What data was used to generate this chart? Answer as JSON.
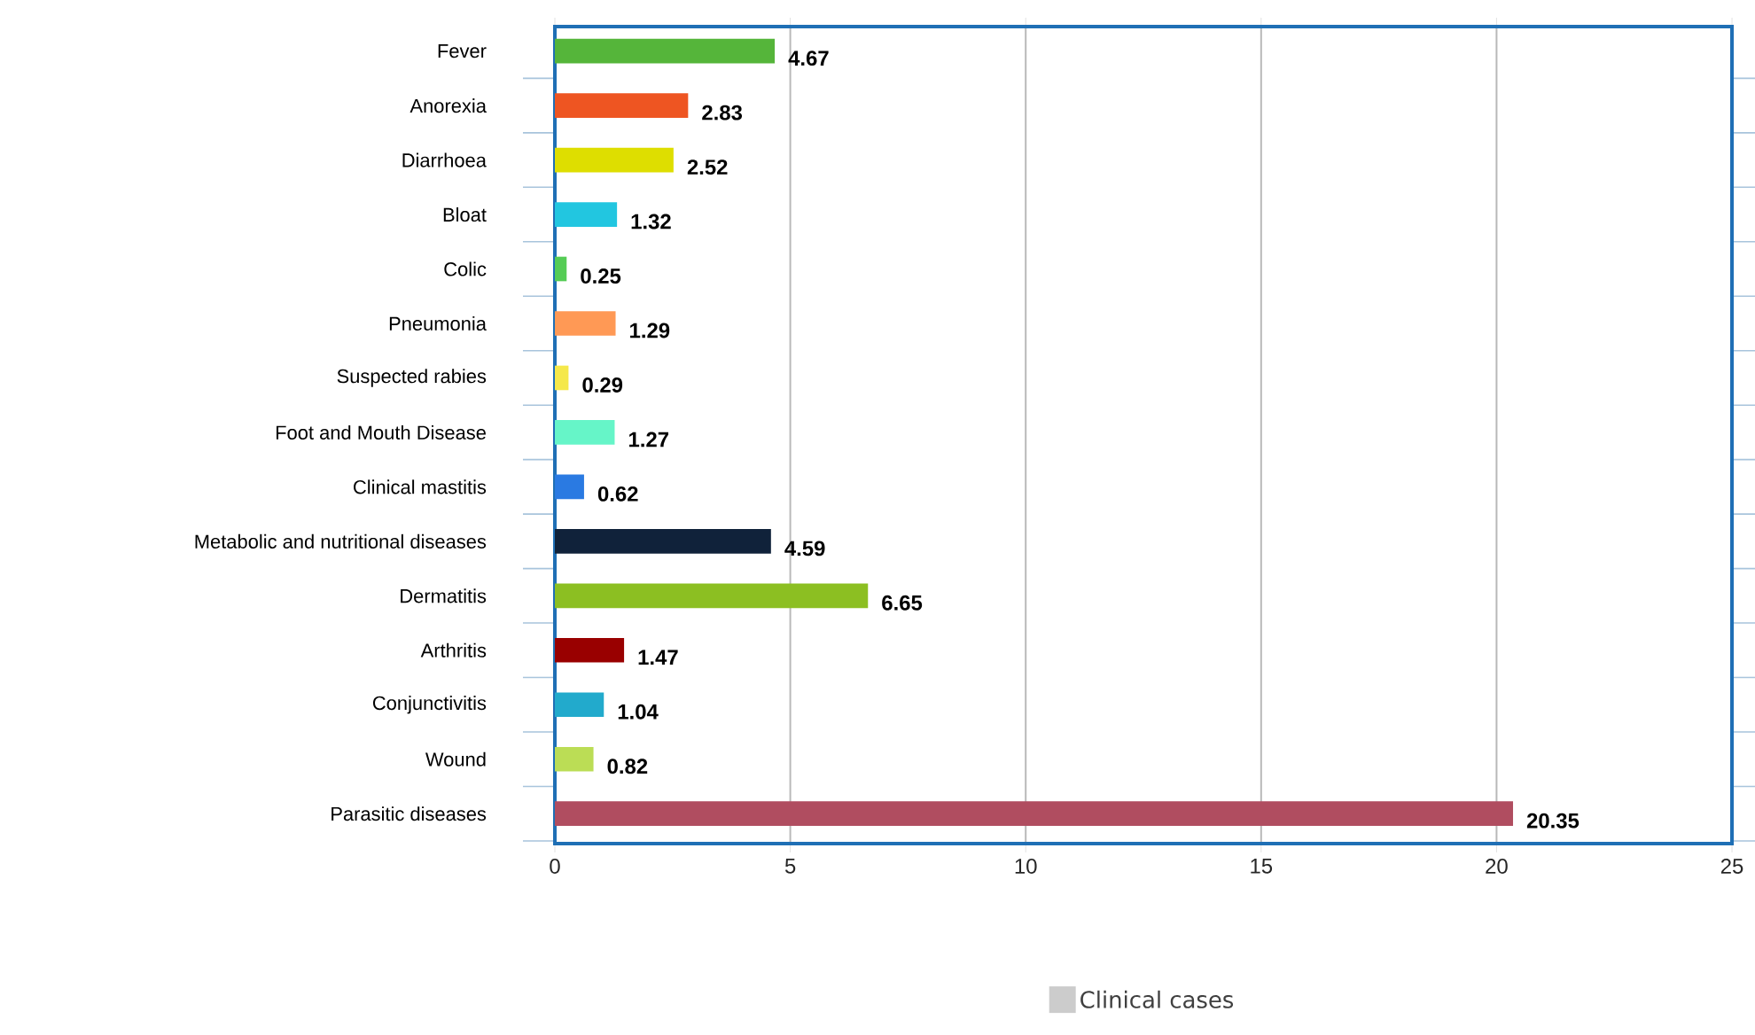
{
  "chart_data": {
    "type": "bar",
    "orientation": "horizontal",
    "categories": [
      "Fever",
      "Anorexia",
      "Diarrhoea",
      "Bloat",
      "Colic",
      "Pneumonia",
      "Suspected rabies",
      "Foot and Mouth Disease",
      "Clinical mastitis",
      "Metabolic and nutritional diseases",
      "Dermatitis",
      "Arthritis",
      "Conjunctivitis",
      "Wound",
      "Parasitic diseases"
    ],
    "series": [
      {
        "name": "Clinical cases",
        "values": [
          4.67,
          2.83,
          2.52,
          1.32,
          0.25,
          1.29,
          0.29,
          1.27,
          0.62,
          4.59,
          6.65,
          1.47,
          1.04,
          0.82,
          20.35
        ]
      }
    ],
    "colors": [
      "#55b53a",
      "#ee5522",
      "#dede00",
      "#22c6e0",
      "#55cc55",
      "#ff9955",
      "#f5e84a",
      "#66f5c8",
      "#2a7ae2",
      "#10223a",
      "#8cbf22",
      "#990000",
      "#22aacc",
      "#bbdd55",
      "#b04d60"
    ],
    "xlim": [
      0,
      25
    ],
    "xticks": [
      0,
      5,
      10,
      15,
      20,
      25
    ],
    "grid": "x",
    "legend": "bottom",
    "data_labels": true
  }
}
